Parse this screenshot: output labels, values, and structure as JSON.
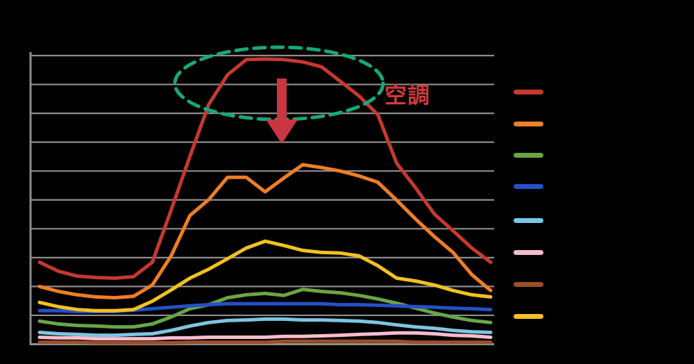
{
  "page": {
    "background": "#000000"
  },
  "annotation": {
    "label": "空調",
    "label_color": "#cf3a3c",
    "arrow_color": "#c93642",
    "ellipse_color": "#17a878"
  },
  "grid_color": "#8e8e8e",
  "chart_data": {
    "type": "line",
    "title": "",
    "xlabel": "",
    "ylabel": "",
    "x_tick_labels_visible": false,
    "y_tick_labels_visible": false,
    "legend_labels_visible": false,
    "legend_position": "right",
    "grid": true,
    "ylim": [
      0,
      100
    ],
    "gridline_interval": 10,
    "x": [
      0,
      1,
      2,
      3,
      4,
      5,
      6,
      7,
      8,
      9,
      10,
      11,
      12,
      13,
      14,
      15,
      16,
      17,
      18,
      19,
      20,
      21,
      22,
      23,
      24
    ],
    "series": [
      {
        "name": "air-conditioning",
        "label": "空調",
        "color": "#c7382f",
        "values": [
          28.4,
          25.3,
          23.6,
          23.1,
          22.9,
          23.4,
          28.4,
          46.5,
          65.1,
          83.1,
          93.3,
          98.6,
          98.8,
          98.6,
          97.8,
          96.1,
          91.1,
          86.0,
          79.5,
          62.7,
          54.2,
          45.1,
          39.3,
          33.3,
          28.4
        ]
      },
      {
        "name": "series-2",
        "label": "",
        "color": "#f07e26",
        "values": [
          20.0,
          18.3,
          17.1,
          16.4,
          16.1,
          16.6,
          20.5,
          30.6,
          44.6,
          50.1,
          57.8,
          57.8,
          52.8,
          57.6,
          62.2,
          61.2,
          60.0,
          58.3,
          56.1,
          49.9,
          43.4,
          37.3,
          31.8,
          24.1,
          18.6
        ]
      },
      {
        "name": "series-3",
        "label": "",
        "color": "#6aa546",
        "values": [
          8.0,
          7.0,
          6.5,
          6.3,
          6.0,
          6.0,
          7.0,
          9.4,
          12.3,
          13.7,
          16.1,
          17.1,
          17.6,
          16.9,
          19.0,
          18.3,
          17.8,
          16.9,
          15.7,
          14.2,
          12.5,
          10.8,
          9.4,
          8.2,
          7.5
        ]
      },
      {
        "name": "series-4",
        "label": "",
        "color": "#2450c8",
        "values": [
          11.6,
          11.6,
          11.3,
          11.3,
          11.3,
          11.8,
          12.3,
          12.8,
          13.3,
          13.7,
          14.0,
          14.0,
          14.0,
          14.0,
          14.0,
          14.0,
          13.7,
          13.7,
          13.5,
          13.3,
          13.0,
          12.8,
          12.5,
          12.3,
          12.0
        ]
      },
      {
        "name": "series-5",
        "label": "",
        "color": "#7ec5e2",
        "values": [
          4.1,
          3.6,
          3.4,
          3.1,
          3.1,
          3.4,
          3.6,
          4.8,
          6.3,
          7.5,
          8.2,
          8.4,
          8.7,
          8.7,
          8.4,
          8.4,
          8.2,
          8.0,
          7.5,
          6.7,
          6.0,
          5.5,
          4.8,
          4.3,
          4.1
        ]
      },
      {
        "name": "series-6",
        "label": "",
        "color": "#f7bcd1",
        "values": [
          2.4,
          2.2,
          2.2,
          1.9,
          1.9,
          1.9,
          1.9,
          2.2,
          2.2,
          2.4,
          2.4,
          2.4,
          2.4,
          2.7,
          2.7,
          2.9,
          3.1,
          3.4,
          3.6,
          3.9,
          3.9,
          3.6,
          3.1,
          2.9,
          2.4
        ]
      },
      {
        "name": "series-7",
        "label": "",
        "color": "#9e4e26",
        "values": [
          0.7,
          0.7,
          0.7,
          0.5,
          0.5,
          0.5,
          0.5,
          0.5,
          0.7,
          0.7,
          0.7,
          0.7,
          0.7,
          1.0,
          1.0,
          1.0,
          1.0,
          1.0,
          1.0,
          1.0,
          0.7,
          0.7,
          0.7,
          0.7,
          0.7
        ]
      },
      {
        "name": "series-8",
        "label": "",
        "color": "#f3c121",
        "values": [
          14.5,
          13.0,
          12.0,
          11.6,
          11.6,
          12.0,
          14.9,
          18.8,
          22.9,
          26.0,
          29.6,
          33.3,
          35.7,
          34.2,
          32.5,
          31.8,
          31.6,
          30.6,
          27.2,
          22.9,
          21.9,
          20.5,
          18.6,
          17.1,
          16.4
        ]
      }
    ]
  }
}
